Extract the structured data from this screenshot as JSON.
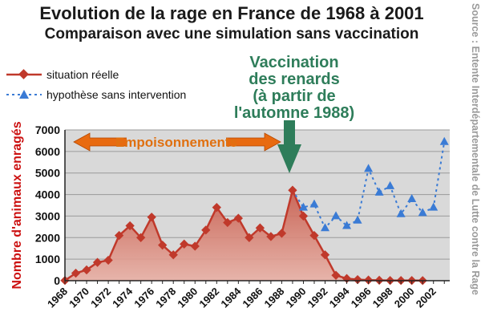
{
  "header": {
    "title": "Evolution de la rage en France de 1968 à 2001",
    "subtitle": "Comparaison avec une simulation sans vaccination",
    "source": "Source : Entente Interdépartementale de Lutte contre la Rage"
  },
  "annotations": {
    "vaccination": [
      "Vaccination",
      "des renards",
      "(à partir de",
      "l'automne 1988)"
    ],
    "poisoning": "Empoisonnements"
  },
  "colors": {
    "real": "#c0392b",
    "hypo": "#3a7bd5",
    "fill": "#c86a5a",
    "plot_bg": "#d9d9d9",
    "vacc_green": "#2e7d5a",
    "arrow_orange": "#d35400"
  },
  "chart_data": {
    "type": "line",
    "title": "Evolution de la rage en France de 1968 à 2001",
    "ylabel": "Nombre d'animaux enragés",
    "xlabel": "",
    "ylim": [
      0,
      7000
    ],
    "yticks": [
      0,
      1000,
      2000,
      3000,
      4000,
      5000,
      6000,
      7000
    ],
    "xticks": [
      1968,
      1970,
      1972,
      1974,
      1976,
      1978,
      1980,
      1982,
      1984,
      1986,
      1988,
      1990,
      1992,
      1994,
      1996,
      1998,
      2000,
      2002
    ],
    "legend_placement": "top-left",
    "grid": true,
    "series": [
      {
        "name": "situation réelle",
        "x": [
          1968,
          1969,
          1970,
          1971,
          1972,
          1973,
          1974,
          1975,
          1976,
          1977,
          1978,
          1979,
          1980,
          1981,
          1982,
          1983,
          1984,
          1985,
          1986,
          1987,
          1988,
          1989,
          1990,
          1991,
          1992,
          1993,
          1994,
          1995,
          1996,
          1997,
          1998,
          1999,
          2000,
          2001
        ],
        "values": [
          10,
          350,
          500,
          850,
          950,
          2100,
          2550,
          2000,
          2950,
          1650,
          1200,
          1700,
          1600,
          2350,
          3400,
          2700,
          2900,
          2000,
          2450,
          2050,
          2200,
          4200,
          3000,
          2100,
          1200,
          250,
          100,
          50,
          30,
          20,
          10,
          10,
          10,
          5
        ]
      },
      {
        "name": "hypothèse sans intervention",
        "x": [
          1989,
          1990,
          1991,
          1992,
          1993,
          1994,
          1995,
          1996,
          1997,
          1998,
          1999,
          2000,
          2001,
          2002,
          2003
        ],
        "values": [
          4200,
          3400,
          3550,
          2450,
          3000,
          2550,
          2800,
          5200,
          4100,
          4400,
          3100,
          3800,
          3150,
          3400,
          6450
        ]
      }
    ]
  }
}
